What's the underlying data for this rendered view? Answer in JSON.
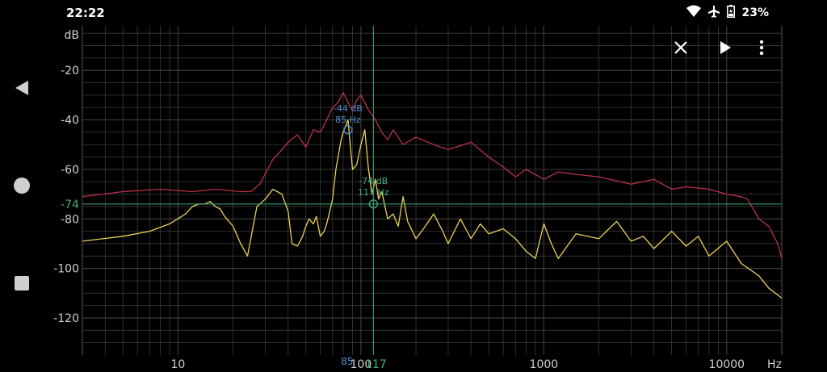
{
  "status": {
    "time": "22:22",
    "battery": "23%"
  },
  "icons": {
    "status": [
      "wifi-icon",
      "airplane-mode-icon",
      "battery-charging-icon"
    ],
    "nav": [
      "back-icon",
      "home-icon",
      "recents-icon"
    ],
    "toolbar": [
      "close-icon",
      "play-icon",
      "more-vert-icon"
    ]
  },
  "colors": {
    "background": "#000000",
    "grid": "#3a3a3a",
    "axis_text": "#cfcfcf",
    "peak_hold": "#b8324a",
    "spectrum": "#ead15a",
    "cursor_main": "#4f8fd0",
    "cursor_alt": "#3fae7f"
  },
  "chart_data": {
    "type": "line",
    "xscale": "log",
    "xlim": [
      3,
      20000
    ],
    "ylim": [
      -135,
      -2
    ],
    "ylabel": "dB",
    "xlabel": "Hz",
    "y_ticks": [
      "-20",
      "-40",
      "-60",
      "-80",
      "-100",
      "-120"
    ],
    "x_ticks": [
      "10",
      "100",
      "1000",
      "10000"
    ],
    "series": [
      {
        "color": "#b8324a",
        "x": [
          3,
          5,
          8,
          12,
          16,
          22,
          25,
          28,
          33,
          37,
          40,
          45,
          50,
          55,
          60,
          65,
          70,
          75,
          80,
          85,
          90,
          95,
          100,
          110,
          120,
          130,
          140,
          150,
          170,
          200,
          250,
          300,
          400,
          500,
          600,
          700,
          800,
          1000,
          1200,
          1500,
          2000,
          3000,
          4000,
          5000,
          6000,
          8000,
          10000,
          12000,
          13000,
          15000,
          17000,
          19000,
          20000
        ],
        "y": [
          -71,
          -69,
          -68,
          -69,
          -68,
          -69,
          -69,
          -66,
          -56,
          -52,
          -49,
          -46,
          -51,
          -44,
          -45,
          -40,
          -35,
          -33,
          -29,
          -33,
          -36,
          -32,
          -30,
          -36,
          -40,
          -45,
          -48,
          -44,
          -50,
          -47,
          -50,
          -52,
          -49,
          -55,
          -59,
          -63,
          -60,
          -64,
          -61,
          -62,
          -63,
          -66,
          -64,
          -68,
          -67,
          -68,
          -70,
          -71,
          -72,
          -80,
          -83,
          -90,
          -96
        ]
      },
      {
        "color": "#ead15a",
        "x": [
          3,
          5,
          7,
          9,
          11,
          12,
          13,
          14,
          15,
          16,
          17,
          18,
          20,
          22,
          24,
          27,
          30,
          33,
          37,
          40,
          42,
          45,
          48,
          50,
          52,
          55,
          57,
          60,
          63,
          65,
          67,
          70,
          73,
          75,
          78,
          80,
          85,
          90,
          95,
          100,
          105,
          110,
          115,
          120,
          125,
          130,
          140,
          150,
          160,
          170,
          180,
          200,
          220,
          250,
          280,
          300,
          350,
          400,
          450,
          500,
          600,
          700,
          800,
          900,
          1000,
          1100,
          1200,
          1500,
          2000,
          2500,
          3000,
          3500,
          4000,
          5000,
          6000,
          7000,
          8000,
          10000,
          12000,
          15000,
          17000,
          20000
        ],
        "y": [
          -89,
          -87,
          -85,
          -82,
          -78,
          -75,
          -74,
          -74,
          -73,
          -75,
          -76,
          -79,
          -83,
          -90,
          -95,
          -75,
          -72,
          -68,
          -70,
          -77,
          -90,
          -91,
          -87,
          -83,
          -80,
          -82,
          -79,
          -87,
          -85,
          -82,
          -78,
          -72,
          -60,
          -55,
          -48,
          -45,
          -40,
          -60,
          -58,
          -50,
          -44,
          -60,
          -70,
          -64,
          -72,
          -69,
          -80,
          -78,
          -83,
          -71,
          -81,
          -88,
          -84,
          -78,
          -85,
          -90,
          -80,
          -88,
          -82,
          -86,
          -84,
          -88,
          -93,
          -96,
          -82,
          -90,
          -96,
          -86,
          -88,
          -81,
          -89,
          -87,
          -92,
          -85,
          -91,
          -87,
          -95,
          -89,
          -98,
          -103,
          -108,
          -112
        ]
      }
    ],
    "markers": [
      {
        "x": 85,
        "y": -44,
        "label_db": "-44 dB",
        "label_hz": "85 Hz",
        "axis_label": "85",
        "color": "#4f8fd0"
      },
      {
        "x": 117,
        "y": -74,
        "label_db": "-74 dB",
        "label_hz": "117 Hz",
        "axis_label": "117",
        "hline_label": "-74",
        "color": "#3fae7f"
      }
    ]
  }
}
